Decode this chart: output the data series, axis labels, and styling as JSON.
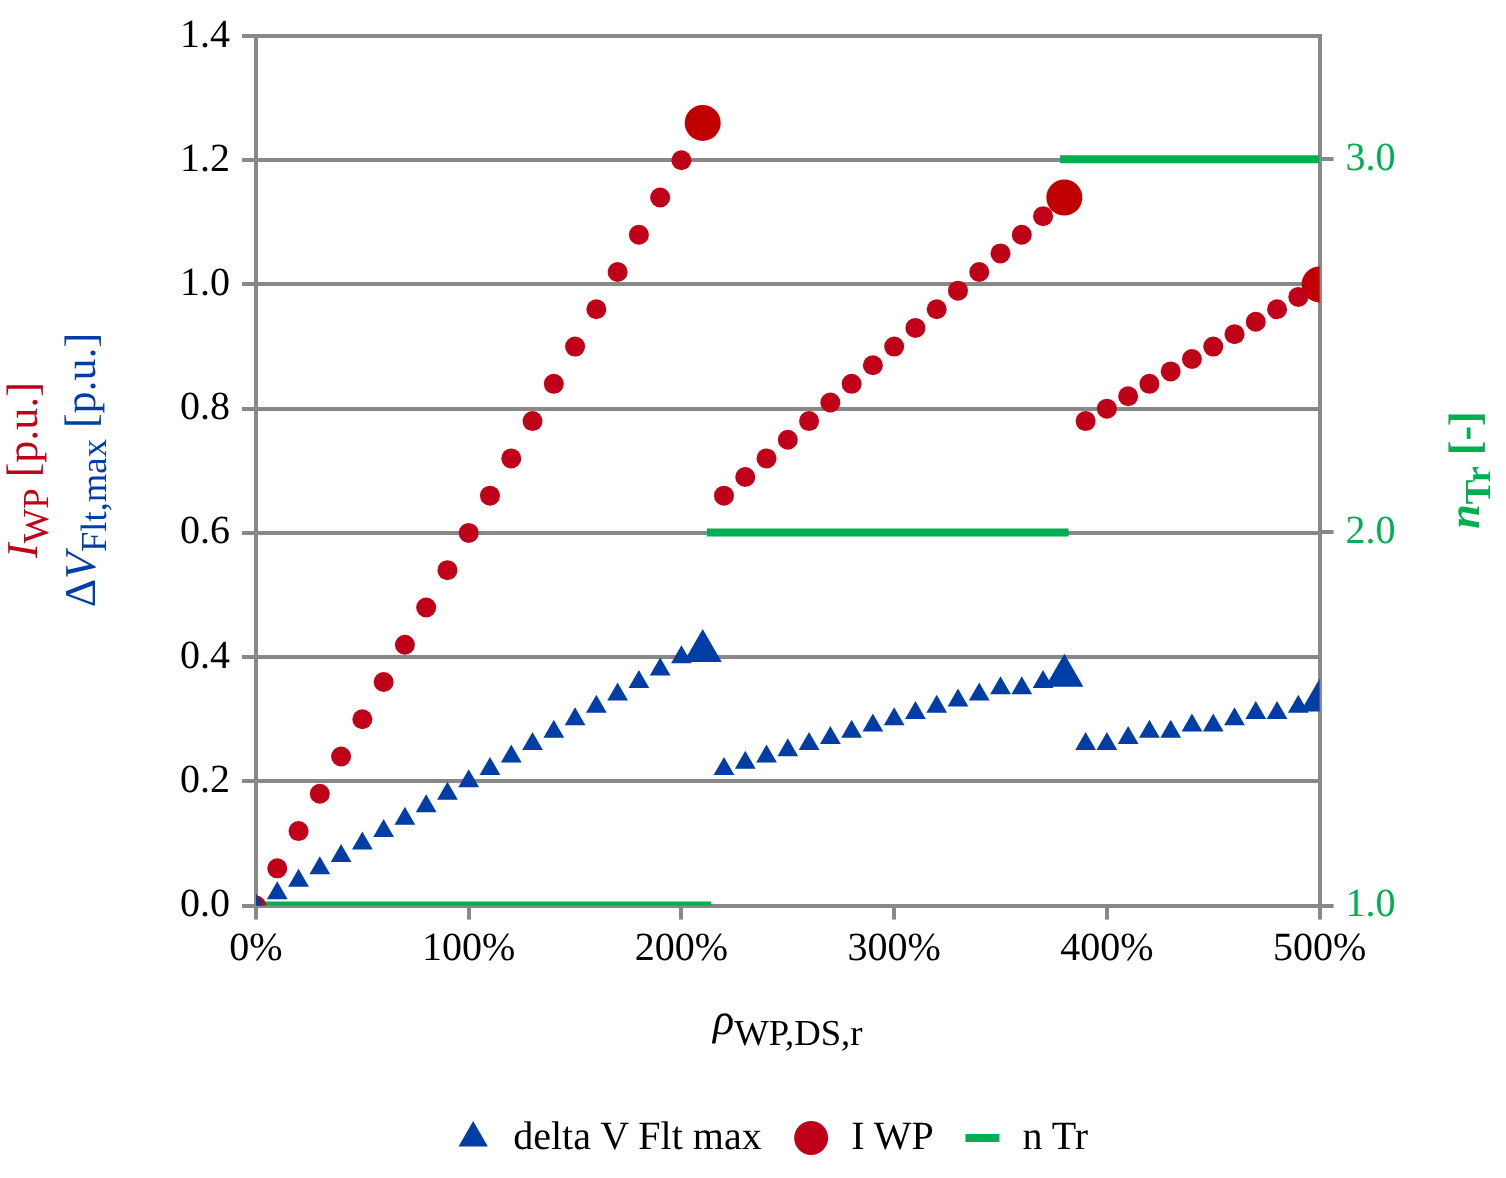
{
  "chart_data": {
    "type": "scatter",
    "xlabel": "ρ$_{WP,DS,r}$",
    "ylabel": "I$_{WP}$ [p.u.]\nΔV$_{Flt,max}$ [p.u.]",
    "y2label": "n$_{Tr}$ [-]",
    "xlim": [
      0,
      500
    ],
    "xticks": [
      {
        "value": 0,
        "label": "0%"
      },
      {
        "value": 100,
        "label": "100%"
      },
      {
        "value": 200,
        "label": "200%"
      },
      {
        "value": 300,
        "label": "300%"
      },
      {
        "value": 400,
        "label": "400%"
      },
      {
        "value": 500,
        "label": "500%"
      }
    ],
    "ylim": [
      0,
      1.4
    ],
    "yticks": [
      {
        "value": 0,
        "label": "0.0"
      },
      0.2,
      0.4,
      0.6,
      0.8,
      {
        "value": 1,
        "label": "1.0"
      },
      1.2,
      1.4
    ],
    "y2lim": [
      1.0,
      3.33
    ],
    "y2ticks": [
      {
        "value": 1,
        "label": "1.0"
      },
      {
        "value": 2,
        "label": "2.0"
      },
      {
        "value": 3,
        "label": "3.0"
      }
    ],
    "grid": "y",
    "legend": "bottom",
    "series": [
      {
        "name": "delta V Flt max",
        "marker": "triangle",
        "color": "#003da5",
        "x": [
          0,
          10,
          20,
          30,
          40,
          50,
          60,
          70,
          80,
          90,
          100,
          110,
          120,
          130,
          140,
          150,
          160,
          170,
          180,
          190,
          200,
          220,
          230,
          240,
          250,
          260,
          270,
          280,
          290,
          300,
          310,
          320,
          330,
          340,
          350,
          360,
          370,
          390,
          400,
          410,
          420,
          430,
          440,
          450,
          460,
          470,
          480,
          490
        ],
        "values": [
          0,
          0.02,
          0.04,
          0.06,
          0.08,
          0.1,
          0.12,
          0.14,
          0.16,
          0.18,
          0.2,
          0.22,
          0.24,
          0.26,
          0.28,
          0.3,
          0.32,
          0.34,
          0.36,
          0.38,
          0.4,
          0.22,
          0.23,
          0.24,
          0.25,
          0.26,
          0.27,
          0.28,
          0.29,
          0.3,
          0.31,
          0.32,
          0.33,
          0.34,
          0.35,
          0.35,
          0.36,
          0.26,
          0.26,
          0.27,
          0.28,
          0.28,
          0.29,
          0.29,
          0.3,
          0.31,
          0.31,
          0.32
        ]
      },
      {
        "name": "I WP",
        "marker": "circle",
        "color": "#c00018",
        "x": [
          0,
          10,
          20,
          30,
          40,
          50,
          60,
          70,
          80,
          90,
          100,
          110,
          120,
          130,
          140,
          150,
          160,
          170,
          180,
          190,
          200,
          220,
          230,
          240,
          250,
          260,
          270,
          280,
          290,
          300,
          310,
          320,
          330,
          340,
          350,
          360,
          370,
          390,
          400,
          410,
          420,
          430,
          440,
          450,
          460,
          470,
          480,
          490
        ],
        "values": [
          0,
          0.06,
          0.12,
          0.18,
          0.24,
          0.3,
          0.36,
          0.42,
          0.48,
          0.54,
          0.6,
          0.66,
          0.72,
          0.78,
          0.84,
          0.9,
          0.96,
          1.02,
          1.08,
          1.14,
          1.2,
          0.66,
          0.69,
          0.72,
          0.75,
          0.78,
          0.81,
          0.84,
          0.87,
          0.9,
          0.93,
          0.96,
          0.99,
          1.02,
          1.05,
          1.08,
          1.11,
          0.78,
          0.8,
          0.82,
          0.84,
          0.86,
          0.88,
          0.9,
          0.92,
          0.94,
          0.96,
          0.98
        ]
      },
      {
        "name": "n Tr",
        "type": "line",
        "axis": "y2",
        "marker": "none",
        "color": "#00b050",
        "x": [
          0,
          214,
          213,
          212,
          382,
          380,
          378,
          500
        ],
        "values": [
          1,
          1,
          null,
          2,
          2,
          null,
          3,
          3
        ]
      },
      {
        "marker": "triangle",
        "color": "#003da5",
        "x": [
          210,
          380,
          500
        ],
        "values": [
          0.41,
          0.37,
          0.33
        ]
      },
      {
        "marker": "circle",
        "color": "#c00000",
        "x": [
          210,
          380,
          500
        ],
        "values": [
          1.26,
          1.14,
          1.0
        ]
      }
    ]
  }
}
